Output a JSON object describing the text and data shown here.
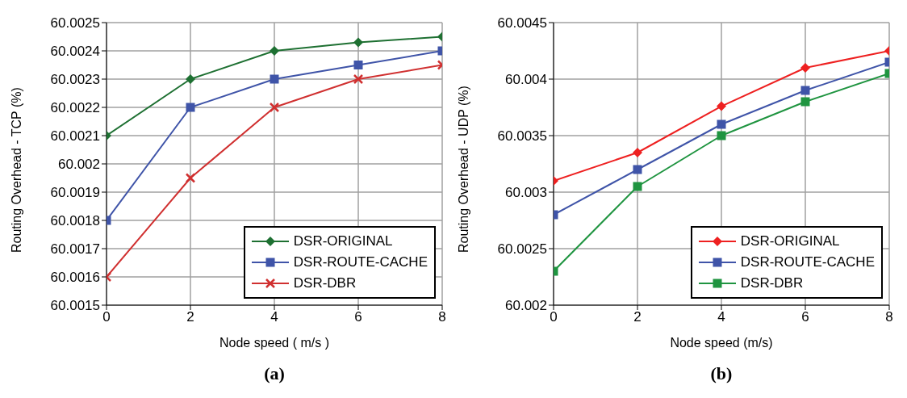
{
  "chart_data": [
    {
      "type": "line",
      "xlabel": "Node speed ( m/s )",
      "ylabel": "Routing Overhead - TCP (%)",
      "annotations": [
        "(a)"
      ],
      "x": [
        0,
        2,
        4,
        6,
        8
      ],
      "xlim": [
        0,
        8
      ],
      "xticks": [
        0,
        2,
        4,
        6,
        8
      ],
      "ylim": [
        60.0015,
        60.0025
      ],
      "yticks": [
        60.0015,
        60.0016,
        60.0017,
        60.0018,
        60.0019,
        60.002,
        60.0021,
        60.0022,
        60.0023,
        60.0024,
        60.0025
      ],
      "grid": true,
      "legend": "bottom right",
      "series": [
        {
          "name": "DSR-ORIGINAL",
          "color": "#1e7032",
          "marker": "diamond",
          "values": [
            60.0021,
            60.0023,
            60.0024,
            60.00243,
            60.00245
          ]
        },
        {
          "name": "DSR-ROUTE-CACHE",
          "color": "#3f54a8",
          "marker": "square",
          "values": [
            60.0018,
            60.0022,
            60.0023,
            60.00235,
            60.0024
          ]
        },
        {
          "name": "DSR-DBR",
          "color": "#d03030",
          "marker": "cross",
          "values": [
            60.0016,
            60.00195,
            60.0022,
            60.0023,
            60.00235
          ]
        }
      ]
    },
    {
      "type": "line",
      "xlabel": "Node speed (m/s)",
      "ylabel": "Routing Overhead - UDP (%)",
      "annotations": [
        "(b)"
      ],
      "x": [
        0,
        2,
        4,
        6,
        8
      ],
      "xlim": [
        0,
        8
      ],
      "xticks": [
        0,
        2,
        4,
        6,
        8
      ],
      "ylim": [
        60.002,
        60.0045
      ],
      "yticks": [
        60.002,
        60.0025,
        60.003,
        60.0035,
        60.004,
        60.0045
      ],
      "grid": true,
      "legend": "bottom right",
      "series": [
        {
          "name": "DSR-ORIGINAL",
          "color": "#ee2020",
          "marker": "diamond",
          "values": [
            60.0031,
            60.00335,
            60.00376,
            60.0041,
            60.00425
          ]
        },
        {
          "name": "DSR-ROUTE-CACHE",
          "color": "#3f54a8",
          "marker": "square",
          "values": [
            60.0028,
            60.0032,
            60.0036,
            60.0039,
            60.00415
          ]
        },
        {
          "name": "DSR-DBR",
          "color": "#1f9440",
          "marker": "square",
          "values": [
            60.0023,
            60.00305,
            60.0035,
            60.0038,
            60.00405
          ]
        }
      ]
    }
  ]
}
